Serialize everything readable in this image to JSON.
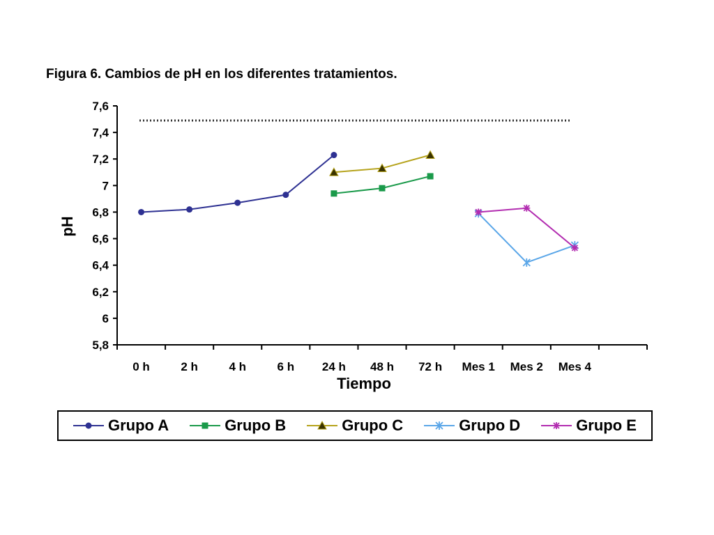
{
  "caption": "Figura 6. Cambios de pH en los diferentes tratamientos.",
  "chart_data": {
    "type": "line",
    "title": "",
    "xlabel": "Tiempo",
    "ylabel": "pH",
    "ylim": [
      5.8,
      7.6
    ],
    "yticks": [
      "7,6",
      "7,4",
      "7,2",
      "7",
      "6,8",
      "6,6",
      "6,4",
      "6,2",
      "6",
      "5,8"
    ],
    "categories": [
      "0 h",
      "2 h",
      "4 h",
      "6 h",
      "24 h",
      "48 h",
      "72 h",
      "Mes 1",
      "Mes 2",
      "Mes 4"
    ],
    "reference_line": {
      "value": 7.49,
      "style": "dotted",
      "color": "#333333"
    },
    "legend_position": "bottom",
    "grid": false,
    "series": [
      {
        "name": "Grupo A",
        "color": "#2e3192",
        "marker": "circle",
        "values": [
          6.8,
          6.82,
          6.87,
          6.93,
          7.23,
          null,
          null,
          null,
          null,
          null
        ]
      },
      {
        "name": "Grupo B",
        "color": "#1a9a4a",
        "marker": "square",
        "values": [
          null,
          null,
          null,
          null,
          6.94,
          6.98,
          7.07,
          null,
          null,
          null
        ]
      },
      {
        "name": "Grupo C",
        "color": "#b5a21a",
        "marker": "triangle",
        "values": [
          null,
          null,
          null,
          null,
          7.1,
          7.13,
          7.23,
          null,
          null,
          null
        ]
      },
      {
        "name": "Grupo D",
        "color": "#5aa6e8",
        "marker": "plus",
        "values": [
          null,
          null,
          null,
          null,
          null,
          null,
          null,
          6.79,
          6.42,
          6.55
        ]
      },
      {
        "name": "Grupo E",
        "color": "#b22cb0",
        "marker": "star",
        "values": [
          null,
          null,
          null,
          null,
          null,
          null,
          null,
          6.8,
          6.83,
          6.53
        ]
      }
    ]
  }
}
